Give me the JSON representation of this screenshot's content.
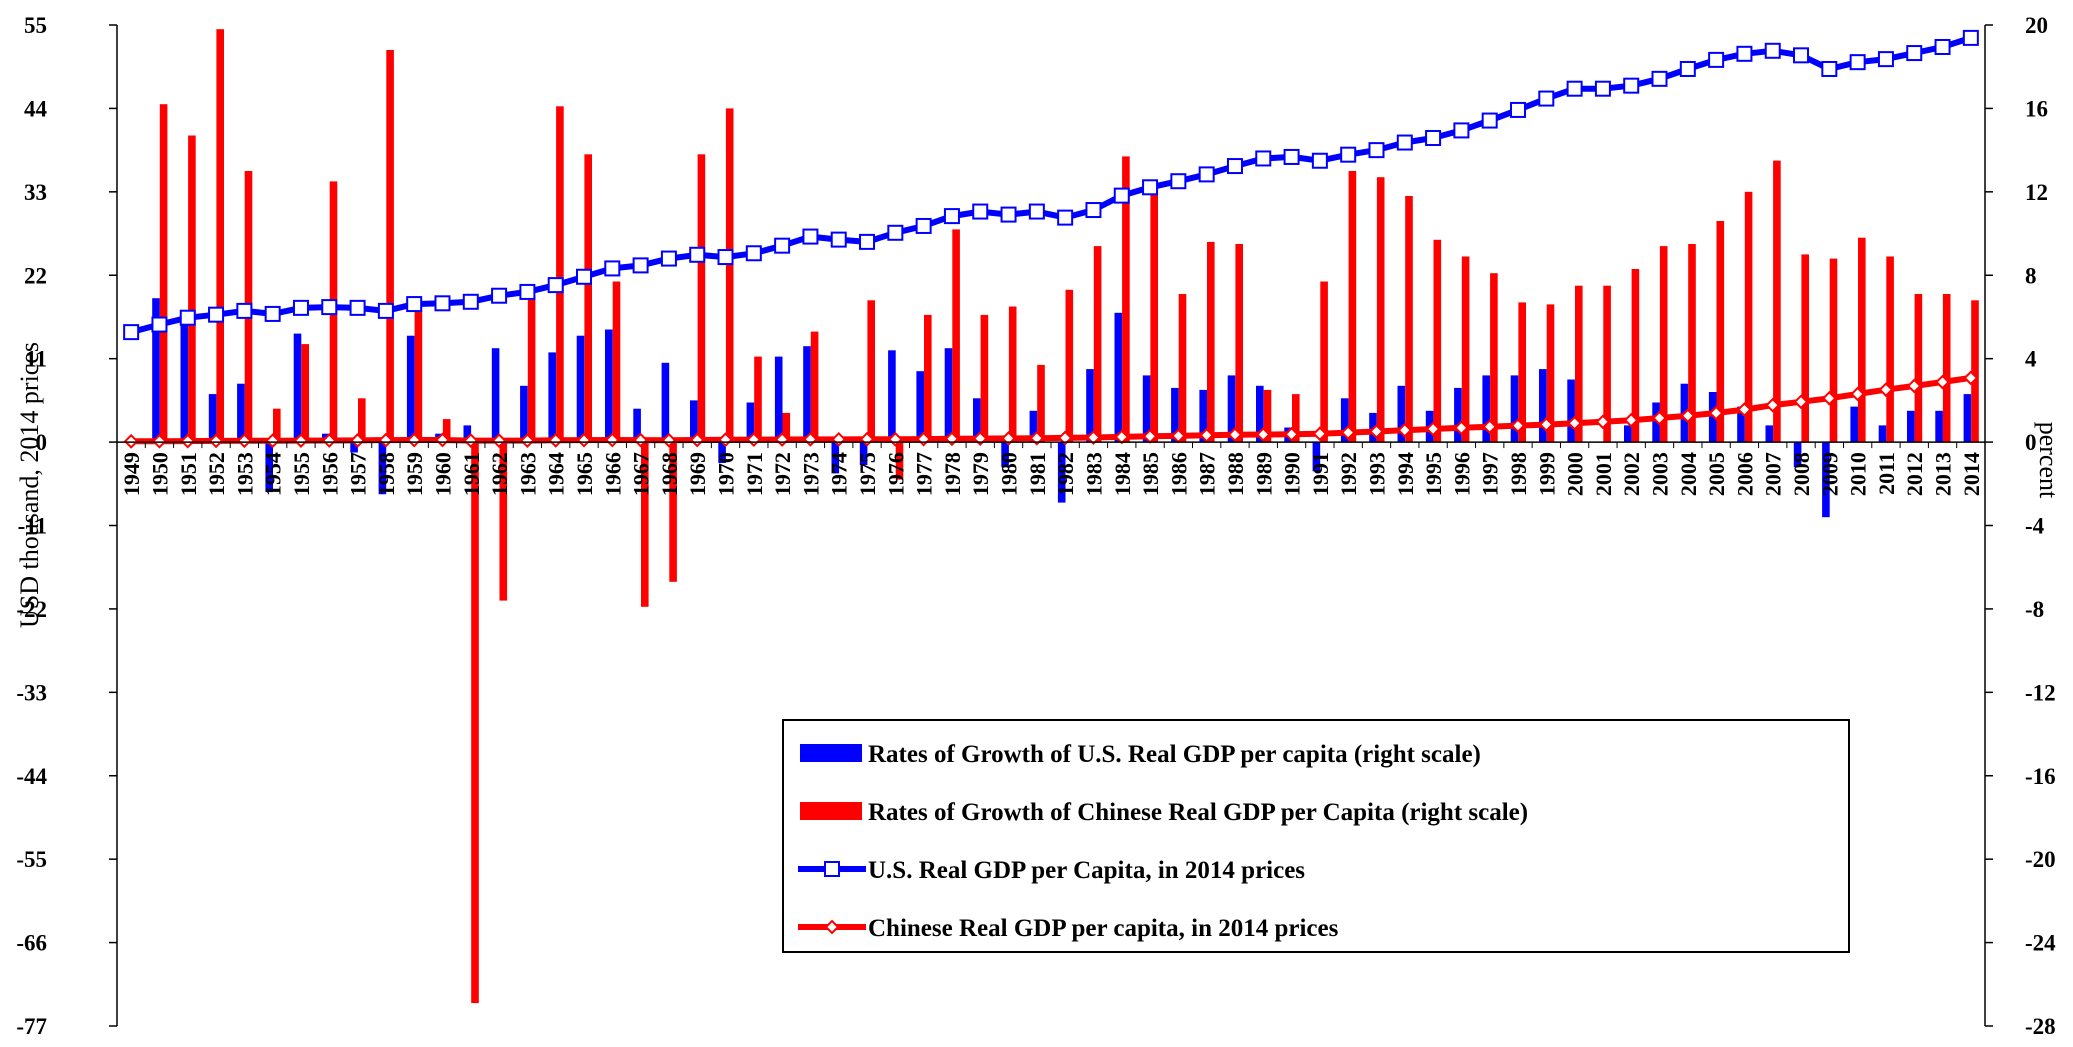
{
  "chart_data": {
    "type": "bar",
    "x": [
      "1949",
      "1950",
      "1951",
      "1952",
      "1953",
      "1954",
      "1955",
      "1956",
      "1957",
      "1958",
      "1959",
      "1960",
      "1961",
      "1962",
      "1963",
      "1964",
      "1965",
      "1966",
      "1967",
      "1968",
      "1969",
      "1970",
      "1971",
      "1972",
      "1973",
      "1974",
      "1975",
      "1976",
      "1977",
      "1978",
      "1979",
      "1980",
      "1981",
      "1982",
      "1983",
      "1984",
      "1985",
      "1986",
      "1987",
      "1988",
      "1989",
      "1990",
      "1991",
      "1992",
      "1993",
      "1994",
      "1995",
      "1996",
      "1997",
      "1998",
      "1999",
      "2000",
      "2001",
      "2002",
      "2003",
      "2004",
      "2005",
      "2006",
      "2007",
      "2008",
      "2009",
      "2010",
      "2011",
      "2012",
      "2013",
      "2014"
    ],
    "left_axis": {
      "label": "USD thousand, 2014 prices",
      "ylim": [
        -77,
        55
      ],
      "ticks": [
        "55",
        "44",
        "33",
        "22",
        "11",
        "0",
        "-11",
        "-22",
        "-33",
        "-44",
        "-55",
        "-66",
        "-77"
      ]
    },
    "right_axis": {
      "label": "percent",
      "ylim": [
        -28,
        20
      ],
      "ticks": [
        "20",
        "16",
        "12",
        "8",
        "4",
        "0",
        "-4",
        "-8",
        "-12",
        "-16",
        "-20",
        "-24",
        "-28"
      ]
    },
    "series": [
      {
        "name": "Rates of Growth of U.S. Real GDP per capita (right scale)",
        "kind": "bar",
        "axis": "right",
        "color": "#0000ff",
        "values": [
          null,
          6.9,
          5.9,
          2.3,
          2.8,
          -2.4,
          5.2,
          0.4,
          -0.5,
          -2.5,
          5.1,
          0.4,
          0.8,
          4.5,
          2.7,
          4.3,
          5.1,
          5.4,
          1.6,
          3.8,
          2.0,
          -1.0,
          1.9,
          4.1,
          4.6,
          -1.5,
          -1.1,
          4.4,
          3.4,
          4.5,
          2.1,
          -1.2,
          1.5,
          -2.9,
          3.5,
          6.2,
          3.2,
          2.6,
          2.5,
          3.2,
          2.7,
          0.7,
          -1.4,
          2.1,
          1.4,
          2.7,
          1.5,
          2.6,
          3.2,
          3.2,
          3.5,
          3.0,
          0.0,
          0.8,
          1.9,
          2.8,
          2.4,
          1.7,
          0.8,
          -1.2,
          -3.6,
          1.7,
          0.8,
          1.5,
          1.5,
          2.3
        ]
      },
      {
        "name": "Rates of Growth of Chinese Real GDP per Capita (right scale)",
        "kind": "bar",
        "axis": "right",
        "color": "#ff0000",
        "values": [
          null,
          16.2,
          14.7,
          19.8,
          13.0,
          1.6,
          4.7,
          12.5,
          2.1,
          18.8,
          6.4,
          1.1,
          -26.9,
          -7.6,
          7.0,
          16.1,
          13.8,
          7.7,
          -7.9,
          -6.7,
          13.8,
          16.0,
          4.1,
          1.4,
          5.3,
          0.2,
          6.8,
          -1.8,
          6.1,
          10.2,
          6.1,
          6.5,
          3.7,
          7.3,
          9.4,
          13.7,
          11.9,
          7.1,
          9.6,
          9.5,
          2.5,
          2.3,
          7.7,
          13.0,
          12.7,
          11.8,
          9.7,
          8.9,
          8.1,
          6.7,
          6.6,
          7.5,
          7.5,
          8.3,
          9.4,
          9.5,
          10.6,
          12.0,
          13.5,
          9.0,
          8.8,
          9.8,
          8.9,
          7.1,
          7.1,
          6.8
        ]
      },
      {
        "name": "U.S. Real GDP per Capita, in 2014 prices",
        "kind": "line",
        "axis": "left",
        "color": "#0000ff",
        "marker": "square",
        "values": [
          14.5,
          15.5,
          16.4,
          16.8,
          17.3,
          16.9,
          17.7,
          17.8,
          17.7,
          17.3,
          18.2,
          18.3,
          18.5,
          19.3,
          19.8,
          20.7,
          21.8,
          22.9,
          23.3,
          24.2,
          24.7,
          24.4,
          24.9,
          25.9,
          27.1,
          26.7,
          26.4,
          27.6,
          28.5,
          29.8,
          30.4,
          30.0,
          30.4,
          29.6,
          30.6,
          32.5,
          33.6,
          34.4,
          35.3,
          36.4,
          37.4,
          37.6,
          37.1,
          37.9,
          38.5,
          39.5,
          40.1,
          41.1,
          42.4,
          43.8,
          45.3,
          46.6,
          46.6,
          47.0,
          47.9,
          49.2,
          50.4,
          51.2,
          51.6,
          51.0,
          49.2,
          50.1,
          50.5,
          51.3,
          52.1,
          53.3
        ]
      },
      {
        "name": "Chinese Real GDP per capita, in 2014 prices",
        "kind": "line",
        "axis": "left",
        "color": "#ff0000",
        "marker": "diamond",
        "values": [
          0.1,
          0.12,
          0.13,
          0.16,
          0.18,
          0.18,
          0.19,
          0.21,
          0.22,
          0.26,
          0.27,
          0.28,
          0.2,
          0.19,
          0.2,
          0.23,
          0.26,
          0.28,
          0.26,
          0.24,
          0.28,
          0.32,
          0.33,
          0.34,
          0.36,
          0.36,
          0.38,
          0.37,
          0.4,
          0.44,
          0.46,
          0.49,
          0.51,
          0.55,
          0.6,
          0.68,
          0.76,
          0.82,
          0.9,
          0.98,
          1.0,
          1.03,
          1.1,
          1.25,
          1.4,
          1.57,
          1.73,
          1.88,
          2.03,
          2.17,
          2.31,
          2.49,
          2.67,
          2.89,
          3.17,
          3.47,
          3.83,
          4.29,
          4.87,
          5.31,
          5.78,
          6.34,
          6.91,
          7.4,
          7.92,
          8.46
        ]
      }
    ],
    "legend_position": "bottom-right",
    "grid": false
  }
}
